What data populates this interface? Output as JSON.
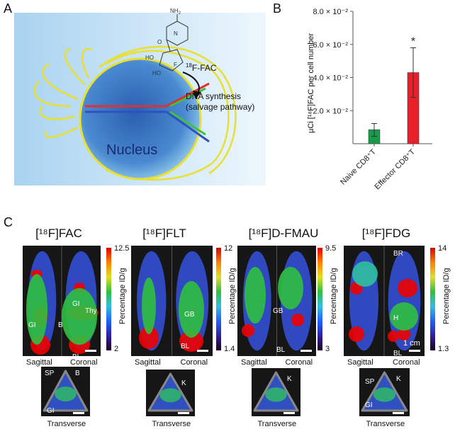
{
  "panel_a": {
    "label": "A",
    "tracer": "F-FAC",
    "tracer_sup": "18",
    "amine": "NH",
    "amine_sub": "2",
    "process_line1": "DNA synthesis",
    "process_line2": "(salvage pathway)",
    "nucleus": "Nucleus",
    "atoms": {
      "n": "N",
      "o": "O",
      "ho1": "HO",
      "ho2": "HO",
      "f": "F"
    }
  },
  "panel_b": {
    "label": "B"
  },
  "chart_data": {
    "type": "bar",
    "categories": [
      "Naive CD8⁺T",
      "Effector CD8⁺T"
    ],
    "values": [
      0.0085,
      0.043
    ],
    "error_low": [
      0.0045,
      0.028
    ],
    "error_high": [
      0.0122,
      0.058
    ],
    "colors": [
      "#1a9a4a",
      "#e8202a"
    ],
    "ylabel": "µCi [¹⁸F]FAC per cell number",
    "ylim": [
      0,
      0.08
    ],
    "yticks": [
      0.02,
      0.04,
      0.06,
      0.08
    ],
    "ytick_labels": [
      "2.0 × 10⁻²",
      "4.0 × 10⁻²",
      "6.0 × 10⁻²",
      "8.0 × 10⁻²"
    ],
    "annotations": [
      "*"
    ],
    "grid": false
  },
  "panel_c": {
    "label": "C",
    "views": {
      "sagittal": "Sagittal",
      "coronal": "Coronal",
      "transverse": "Transverse"
    },
    "colorbar_label": "Percentage ID/g",
    "tracers": [
      {
        "title": "[¹⁸F]FAC",
        "max": "12.5",
        "min": "2",
        "labels": [
          "Thy",
          "GI",
          "B",
          "GI",
          "BL"
        ],
        "trans_labels": [
          "SP",
          "B",
          "GI"
        ]
      },
      {
        "title": "[¹⁸F]FLT",
        "max": "12",
        "min": "1.4",
        "labels": [
          "GB",
          "BL"
        ],
        "trans_labels": [
          "K"
        ]
      },
      {
        "title": "[¹⁸F]D-FMAU",
        "max": "9.5",
        "min": "3",
        "labels": [
          "GB",
          "BL"
        ],
        "trans_labels": [
          "K"
        ]
      },
      {
        "title": "[¹⁸F]FDG",
        "max": "14",
        "min": "1.3",
        "labels": [
          "BR",
          "H",
          "BL"
        ],
        "trans_labels": [
          "SP",
          "K",
          "GI"
        ],
        "scale": "1 cm"
      }
    ]
  }
}
